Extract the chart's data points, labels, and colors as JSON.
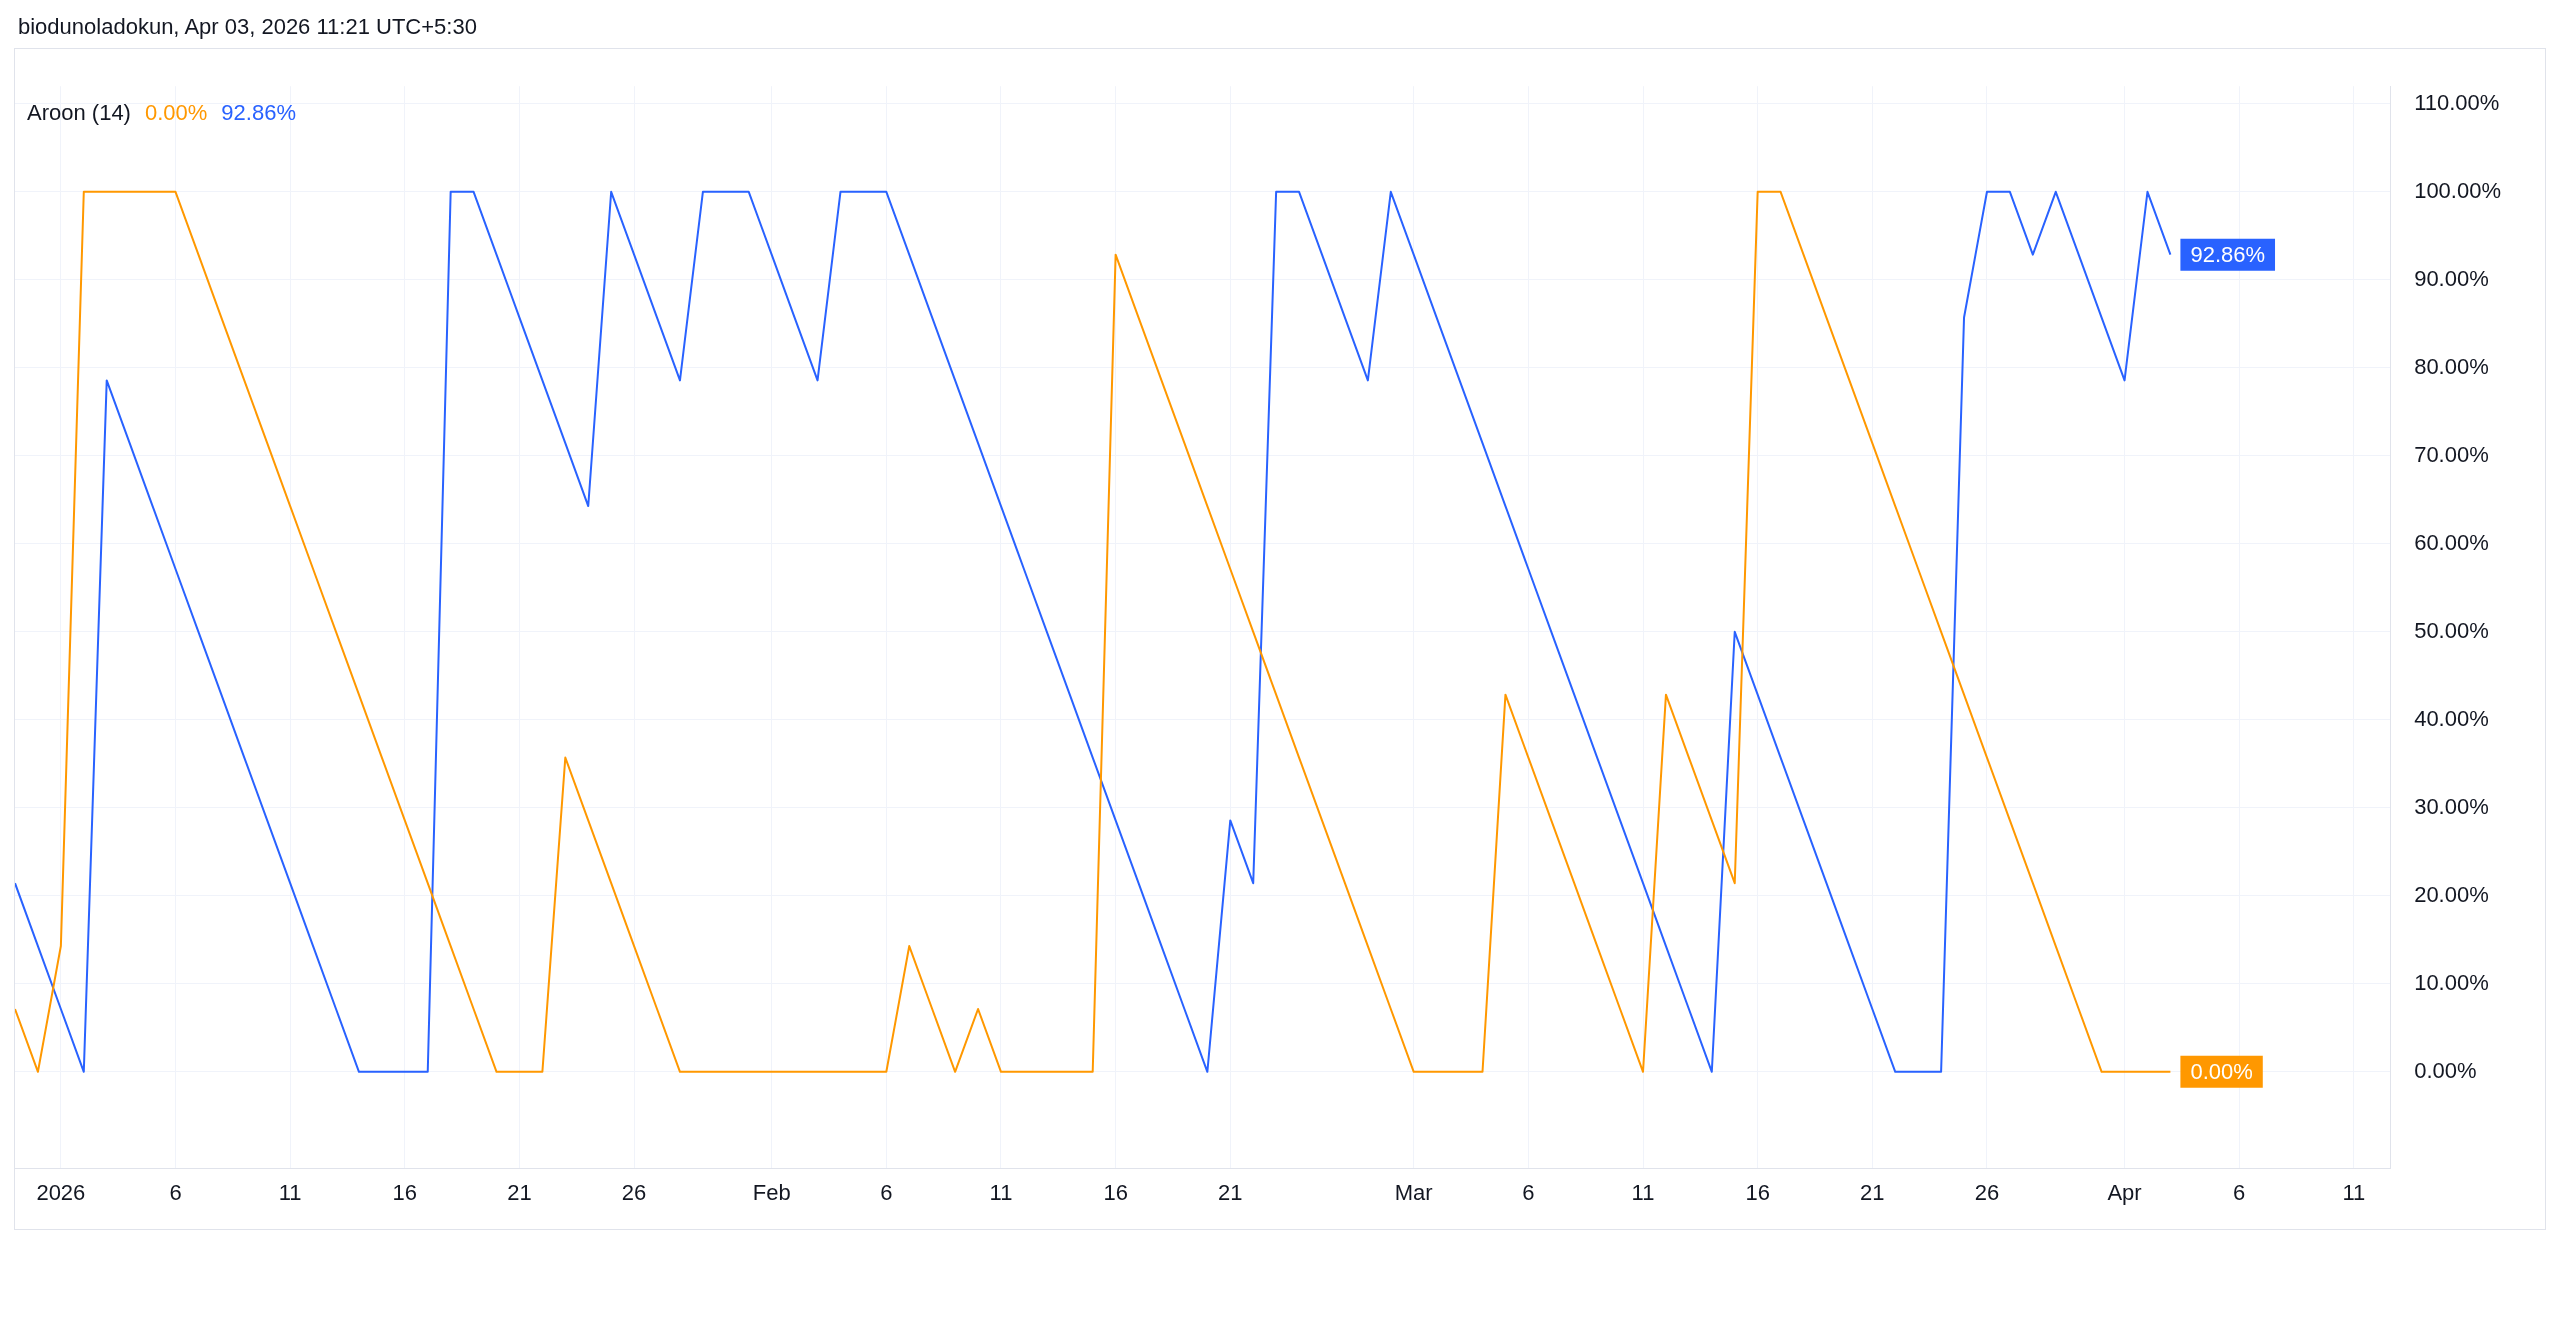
{
  "chart_data": {
    "type": "line",
    "title": "Aroon (14)",
    "annotations": [
      "biodunoladokun, Apr 03, 2026 11:21 UTC+5:30"
    ],
    "x": [
      "2025-12-30",
      "2025-12-31",
      "2026-01-01",
      "2026-01-02",
      "2026-01-03",
      "2026-01-04",
      "2026-01-05",
      "2026-01-06",
      "2026-01-07",
      "2026-01-08",
      "2026-01-09",
      "2026-01-10",
      "2026-01-11",
      "2026-01-12",
      "2026-01-13",
      "2026-01-14",
      "2026-01-15",
      "2026-01-16",
      "2026-01-17",
      "2026-01-18",
      "2026-01-19",
      "2026-01-20",
      "2026-01-21",
      "2026-01-22",
      "2026-01-23",
      "2026-01-24",
      "2026-01-25",
      "2026-01-26",
      "2026-01-27",
      "2026-01-28",
      "2026-01-29",
      "2026-01-30",
      "2026-01-31",
      "2026-02-01",
      "2026-02-02",
      "2026-02-03",
      "2026-02-04",
      "2026-02-05",
      "2026-02-06",
      "2026-02-07",
      "2026-02-08",
      "2026-02-09",
      "2026-02-10",
      "2026-02-11",
      "2026-02-12",
      "2026-02-13",
      "2026-02-14",
      "2026-02-15",
      "2026-02-16",
      "2026-02-17",
      "2026-02-18",
      "2026-02-19",
      "2026-02-20",
      "2026-02-21",
      "2026-02-22",
      "2026-02-23",
      "2026-02-24",
      "2026-02-25",
      "2026-02-26",
      "2026-02-27",
      "2026-02-28",
      "2026-03-01",
      "2026-03-02",
      "2026-03-03",
      "2026-03-04",
      "2026-03-05",
      "2026-03-06",
      "2026-03-07",
      "2026-03-08",
      "2026-03-09",
      "2026-03-10",
      "2026-03-11",
      "2026-03-12",
      "2026-03-13",
      "2026-03-14",
      "2026-03-15",
      "2026-03-16",
      "2026-03-17",
      "2026-03-18",
      "2026-03-19",
      "2026-03-20",
      "2026-03-21",
      "2026-03-22",
      "2026-03-23",
      "2026-03-24",
      "2026-03-25",
      "2026-03-26",
      "2026-03-27",
      "2026-03-28",
      "2026-03-29",
      "2026-03-30",
      "2026-03-31",
      "2026-04-01",
      "2026-04-02",
      "2026-04-03"
    ],
    "series": [
      {
        "color": "#ff9800",
        "value_labels": [
          null,
          null,
          null,
          null,
          null,
          null,
          null,
          null,
          null,
          null,
          null,
          null,
          null,
          null,
          null,
          null,
          null,
          null,
          null,
          null,
          null,
          null,
          null,
          null,
          null,
          null,
          null,
          null,
          null,
          null,
          null,
          null,
          null,
          null,
          null,
          null,
          null,
          null,
          null,
          null,
          null,
          null,
          null,
          null,
          null,
          null,
          null,
          null,
          null,
          null,
          null,
          null,
          null,
          null,
          null,
          null,
          null,
          null,
          null,
          null,
          null,
          null,
          null,
          null,
          null,
          null,
          null,
          null,
          null,
          null,
          null,
          null,
          null,
          null,
          null,
          null,
          null,
          null,
          null,
          null,
          null,
          null,
          null,
          null,
          null,
          null,
          null,
          null,
          null,
          null,
          null,
          null,
          null,
          null,
          "0.00%"
        ],
        "values": [
          7.14,
          0,
          14.29,
          100,
          100,
          100,
          100,
          100,
          92.86,
          85.71,
          78.57,
          71.43,
          64.29,
          57.14,
          50,
          42.86,
          35.71,
          28.57,
          21.43,
          14.29,
          7.14,
          0,
          0,
          0,
          35.71,
          28.57,
          21.43,
          14.29,
          7.14,
          0,
          0,
          0,
          0,
          0,
          0,
          0,
          0,
          0,
          0,
          14.29,
          7.14,
          0,
          7.14,
          0,
          0,
          0,
          0,
          0,
          92.86,
          85.71,
          78.57,
          71.43,
          64.29,
          57.14,
          50,
          42.86,
          35.71,
          28.57,
          21.43,
          14.29,
          7.14,
          0,
          0,
          0,
          0,
          42.86,
          35.71,
          28.57,
          21.43,
          14.29,
          7.14,
          0,
          42.86,
          35.71,
          28.57,
          21.43,
          100,
          100,
          92.86,
          85.71,
          78.57,
          71.43,
          64.29,
          57.14,
          50,
          42.86,
          35.71,
          28.57,
          21.43,
          14.29,
          7.14,
          0,
          0,
          0,
          0
        ]
      },
      {
        "color": "#2962ff",
        "value_labels": [
          null,
          null,
          null,
          null,
          null,
          null,
          null,
          null,
          null,
          null,
          null,
          null,
          null,
          null,
          null,
          null,
          null,
          null,
          null,
          null,
          null,
          null,
          null,
          null,
          null,
          null,
          null,
          null,
          null,
          null,
          null,
          null,
          null,
          null,
          null,
          null,
          null,
          null,
          null,
          null,
          null,
          null,
          null,
          null,
          null,
          null,
          null,
          null,
          null,
          null,
          null,
          null,
          null,
          null,
          null,
          null,
          null,
          null,
          null,
          null,
          null,
          null,
          null,
          null,
          null,
          null,
          null,
          null,
          null,
          null,
          null,
          null,
          null,
          null,
          null,
          null,
          null,
          null,
          null,
          null,
          null,
          null,
          null,
          null,
          null,
          null,
          null,
          null,
          null,
          null,
          null,
          null,
          null,
          null,
          "92.86%"
        ],
        "values": [
          21.43,
          14.29,
          7.14,
          0,
          78.57,
          71.43,
          64.29,
          57.14,
          50,
          42.86,
          35.71,
          28.57,
          21.43,
          14.29,
          7.14,
          0,
          0,
          0,
          0,
          100,
          100,
          92.86,
          85.71,
          78.57,
          71.43,
          64.29,
          100,
          92.86,
          85.71,
          78.57,
          100,
          100,
          100,
          92.86,
          85.71,
          78.57,
          100,
          100,
          100,
          92.86,
          85.71,
          78.57,
          71.43,
          64.29,
          57.14,
          50,
          42.86,
          35.71,
          28.57,
          21.43,
          14.29,
          7.14,
          0,
          28.57,
          21.43,
          100,
          100,
          92.86,
          85.71,
          78.57,
          100,
          92.86,
          85.71,
          78.57,
          71.43,
          64.29,
          57.14,
          50,
          42.86,
          35.71,
          28.57,
          21.43,
          14.29,
          7.14,
          0,
          50,
          42.86,
          35.71,
          28.57,
          21.43,
          14.29,
          7.14,
          0,
          0,
          0,
          85.71,
          100,
          100,
          92.86,
          100,
          92.86,
          85.71,
          78.57,
          100,
          92.86
        ]
      }
    ],
    "xlim": [
      "2025-12-30",
      "2026-04-12T14:00"
    ],
    "xticks": [
      {
        "value": "2026-01-01",
        "label": "2026"
      },
      {
        "value": "2026-01-06",
        "label": "6"
      },
      {
        "value": "2026-01-11",
        "label": "11"
      },
      {
        "value": "2026-01-16",
        "label": "16"
      },
      {
        "value": "2026-01-21",
        "label": "21"
      },
      {
        "value": "2026-01-26",
        "label": "26"
      },
      {
        "value": "2026-02-01",
        "label": "Feb"
      },
      {
        "value": "2026-02-06",
        "label": "6"
      },
      {
        "value": "2026-02-11",
        "label": "11"
      },
      {
        "value": "2026-02-16",
        "label": "16"
      },
      {
        "value": "2026-02-21",
        "label": "21"
      },
      {
        "value": "2026-03-01",
        "label": "Mar"
      },
      {
        "value": "2026-03-06",
        "label": "6"
      },
      {
        "value": "2026-03-11",
        "label": "11"
      },
      {
        "value": "2026-03-16",
        "label": "16"
      },
      {
        "value": "2026-03-21",
        "label": "21"
      },
      {
        "value": "2026-03-26",
        "label": "26"
      },
      {
        "value": "2026-04-01",
        "label": "Apr"
      },
      {
        "value": "2026-04-06",
        "label": "6"
      },
      {
        "value": "2026-04-11",
        "label": "11"
      }
    ],
    "ylim": [
      -11,
      112
    ],
    "yticks": [
      {
        "value": 0,
        "label": "0.00%"
      },
      {
        "value": 10,
        "label": "10.00%"
      },
      {
        "value": 20,
        "label": "20.00%"
      },
      {
        "value": 30,
        "label": "30.00%"
      },
      {
        "value": 40,
        "label": "40.00%"
      },
      {
        "value": 50,
        "label": "50.00%"
      },
      {
        "value": 60,
        "label": "60.00%"
      },
      {
        "value": 70,
        "label": "70.00%"
      },
      {
        "value": 80,
        "label": "80.00%"
      },
      {
        "value": 90,
        "label": "90.00%"
      },
      {
        "value": 100,
        "label": "100.00%"
      },
      {
        "value": 110,
        "label": "110.00%"
      }
    ],
    "grid": true,
    "legend": false,
    "marker": "none",
    "line_style": "solid"
  }
}
